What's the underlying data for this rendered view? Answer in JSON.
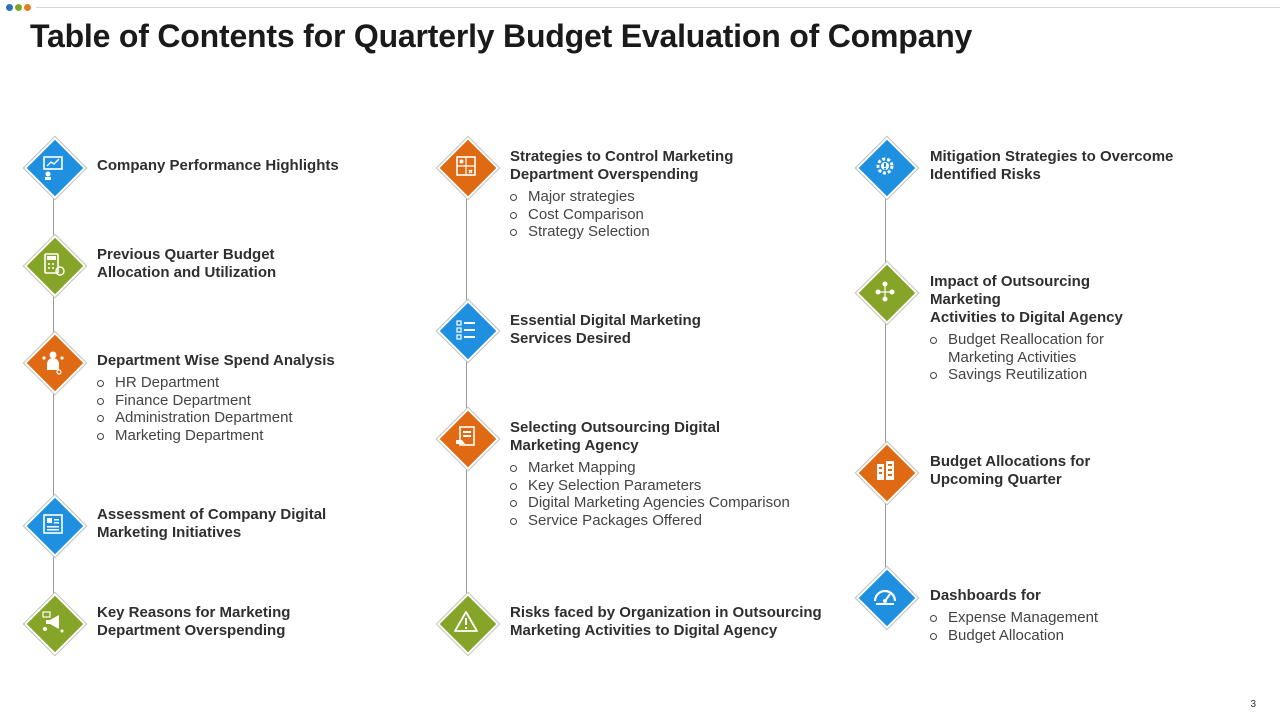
{
  "title": "Table of Contents for Quarterly Budget Evaluation of Company",
  "page_number": "3",
  "colors": {
    "blue": "#1f8fe0",
    "green": "#86a528",
    "orange": "#e06a13",
    "dot_blue": "#2e75b6",
    "dot_green": "#7fa72c",
    "dot_orange": "#e47d22"
  },
  "col1": [
    {
      "icon": "presentation-chart-icon",
      "color": "blue",
      "heading": [
        "Company  Performance Highlights"
      ],
      "subs": []
    },
    {
      "icon": "calculator-budget-icon",
      "color": "green",
      "heading": [
        "Previous Quarter Budget",
        "Allocation  and Utilization"
      ],
      "subs": []
    },
    {
      "icon": "person-departments-icon",
      "color": "orange",
      "heading": [
        "Department Wise Spend Analysis"
      ],
      "subs": [
        "HR Department",
        "Finance Department",
        "Administration Department",
        "Marketing Department"
      ]
    },
    {
      "icon": "digital-dashboard-icon",
      "color": "blue",
      "heading": [
        "Assessment of Company Digital",
        "Marketing Initiatives"
      ],
      "subs": []
    },
    {
      "icon": "marketing-megaphone-icon",
      "color": "green",
      "heading": [
        "Key Reasons for Marketing",
        "Department Overspending"
      ],
      "subs": []
    }
  ],
  "col2": [
    {
      "icon": "strategy-board-icon",
      "color": "orange",
      "heading": [
        "Strategies to Control Marketing",
        "Department Overspending"
      ],
      "subs": [
        "Major  strategies",
        "Cost Comparison",
        "Strategy Selection"
      ]
    },
    {
      "icon": "checklist-icon",
      "color": "blue",
      "heading": [
        "Essential Digital Marketing",
        "Services Desired"
      ],
      "subs": []
    },
    {
      "icon": "agency-selection-icon",
      "color": "orange",
      "heading": [
        "Selecting Outsourcing Digital",
        "Marketing Agency"
      ],
      "subs": [
        "Market Mapping",
        "Key Selection Parameters",
        "Digital Marketing Agencies Comparison",
        "Service Packages Offered"
      ]
    },
    {
      "icon": "warning-icon",
      "color": "green",
      "heading": [
        "Risks faced by  Organization in Outsourcing",
        "Marketing Activities to Digital Agency"
      ],
      "subs": []
    }
  ],
  "col3": [
    {
      "icon": "gear-shield-icon",
      "color": "blue",
      "heading": [
        "Mitigation Strategies to Overcome",
        "Identified Risks"
      ],
      "subs": []
    },
    {
      "icon": "outsourcing-network-icon",
      "color": "green",
      "heading": [
        "Impact of Outsourcing Marketing",
        "Activities to Digital Agency"
      ],
      "subs": [
        "Budget Reallocation for Marketing Activities",
        "Savings Reutilization"
      ]
    },
    {
      "icon": "budget-building-icon",
      "color": "orange",
      "heading": [
        "Budget Allocations  for",
        "Upcoming Quarter"
      ],
      "subs": []
    },
    {
      "icon": "speedometer-icon",
      "color": "blue",
      "heading": [
        "Dashboards for"
      ],
      "subs": [
        "Expense Management",
        "Budget Allocation"
      ]
    }
  ]
}
